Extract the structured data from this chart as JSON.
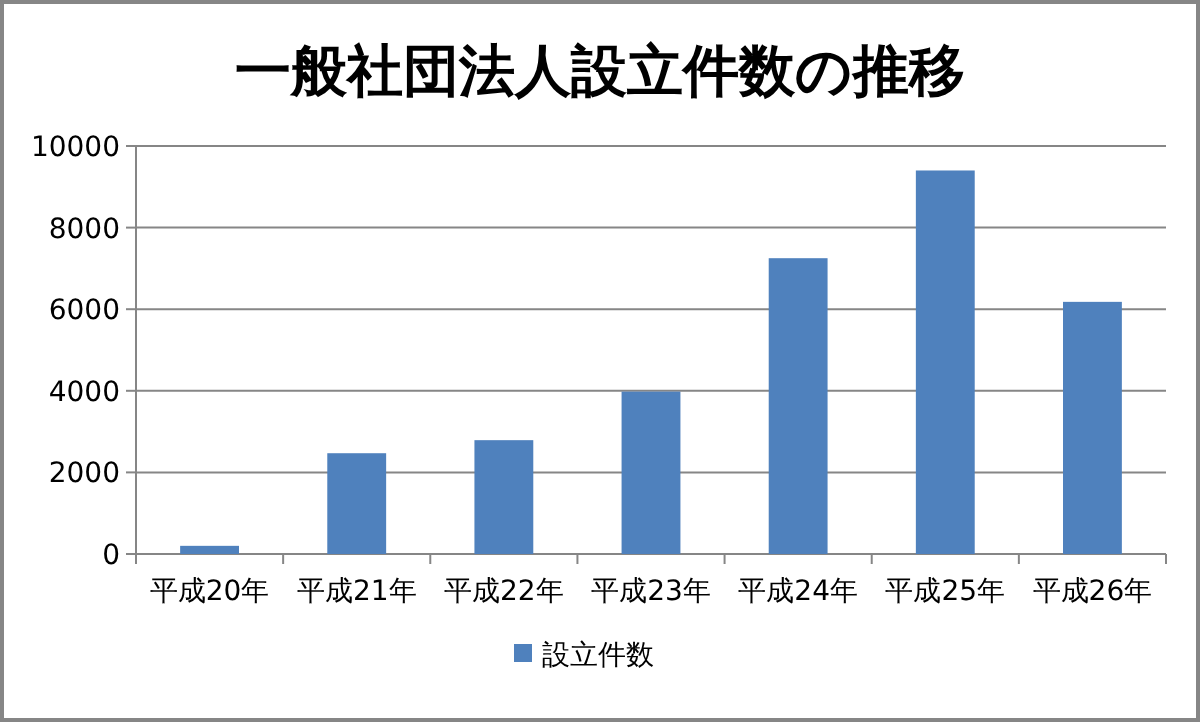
{
  "chart_data": {
    "type": "bar",
    "title": "一般社団法人設立件数の推移",
    "categories": [
      "平成20年",
      "平成21年",
      "平成22年",
      "平成23年",
      "平成24年",
      "平成25年",
      "平成26年"
    ],
    "series": [
      {
        "name": "設立件数",
        "color": "#4f81bd",
        "values": [
          200,
          2470,
          2790,
          3980,
          7250,
          9400,
          6180
        ]
      }
    ],
    "ylim": [
      0,
      10000
    ],
    "yticks": [
      0,
      2000,
      4000,
      6000,
      8000,
      10000
    ],
    "grid": "y",
    "legend": "bottom"
  }
}
